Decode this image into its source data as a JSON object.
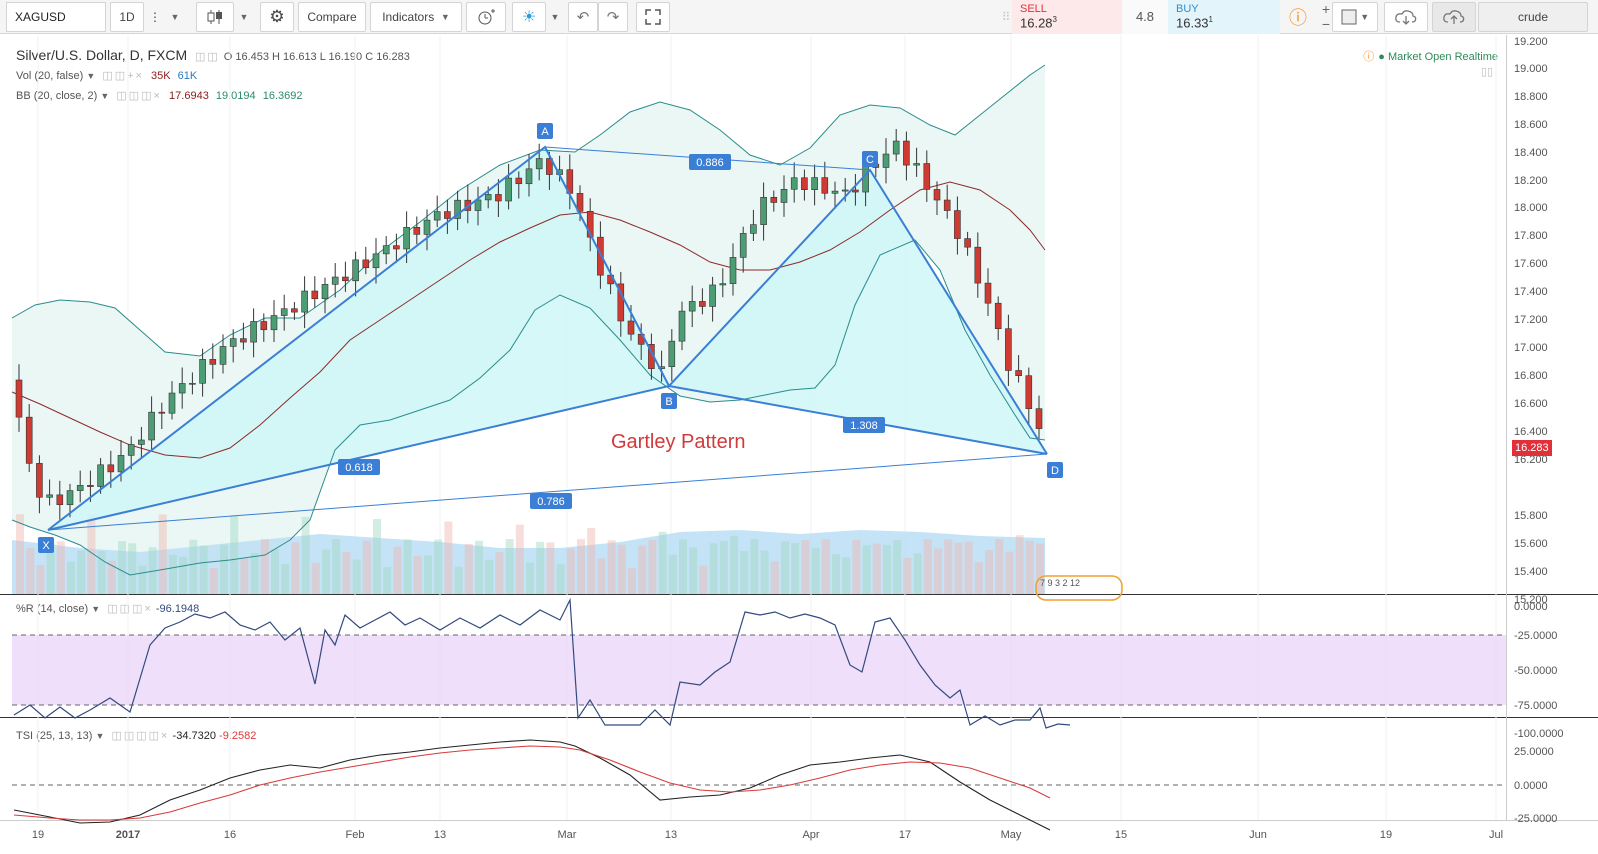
{
  "toolbar": {
    "symbol": "XAGUSD",
    "interval": "1D",
    "compare_label": "Compare",
    "indicators_label": "Indicators",
    "layout_name": "crude"
  },
  "trade": {
    "sell_label": "SELL",
    "sell_price": "16.28",
    "sell_sup": "3",
    "spread": "4.8",
    "buy_label": "BUY",
    "buy_price": "16.33",
    "buy_sup": "1"
  },
  "legend": {
    "main_title": "Silver/U.S. Dollar, D, FXCM",
    "ohlc": "O 16.453  H 16.613  L 16.190  C 16.283",
    "vol_title": "Vol (20, false)",
    "vol_v1": "35K",
    "vol_v2": "61K",
    "bb_title": "BB (20, close, 2)",
    "bb_v1": "17.6943",
    "bb_v2": "19.0194",
    "bb_v3": "16.3692",
    "wr_title": "%R (14, close)",
    "wr_value": "-96.1948",
    "tsi_title": "TSI (25, 13, 13)",
    "tsi_v1": "-34.7320",
    "tsi_v2": "-9.2582"
  },
  "market_status": "Market Open Realtime",
  "price_tag": "16.283",
  "chart_data": {
    "type": "candlestick",
    "symbol": "Silver/U.S. Dollar",
    "annotation": "Gartley Pattern",
    "price_axis_ticks": [
      "19.200",
      "19.000",
      "18.800",
      "18.600",
      "18.400",
      "18.200",
      "18.000",
      "17.800",
      "17.600",
      "17.400",
      "17.200",
      "17.000",
      "16.800",
      "16.600",
      "16.400",
      "16.200",
      "15.800",
      "15.600",
      "15.400",
      "15.200"
    ],
    "wr_axis_ticks": [
      "0.0000",
      "-25.0000",
      "-50.0000",
      "-75.0000",
      "-100.0000"
    ],
    "tsi_axis_ticks": [
      "25.0000",
      "0.0000",
      "-25.0000"
    ],
    "time_axis_ticks": [
      "19",
      "2017",
      "16",
      "Feb",
      "13",
      "Mar",
      "13",
      "Apr",
      "17",
      "May",
      "15",
      "Jun",
      "19",
      "Jul"
    ],
    "pattern_points": [
      {
        "label": "X",
        "price": 15.62
      },
      {
        "label": "A",
        "price": 18.45
      },
      {
        "label": "B",
        "price": 16.71
      },
      {
        "label": "C",
        "price": 18.27
      },
      {
        "label": "D",
        "price": 16.22
      }
    ],
    "ratios": [
      "0.886",
      "0.618",
      "1.308",
      "0.786"
    ],
    "event_badges": "7 9 3 2 12",
    "colors": {
      "up": "#4c9c74",
      "down": "#cf3b33",
      "pattern_line": "#3a7fd5",
      "pattern_fill": "#cff7f7",
      "bb_band": "#2b8c8c",
      "bb_basis": "#8b2b2b",
      "wr_band": "#ead4fa"
    }
  }
}
